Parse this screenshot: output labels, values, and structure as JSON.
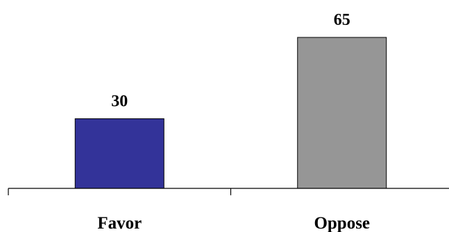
{
  "chart_data": {
    "type": "bar",
    "title": "",
    "xlabel": "",
    "ylabel": "",
    "categories": [
      "Favor",
      "Oppose"
    ],
    "values": [
      30,
      65
    ],
    "data_labels": [
      "30",
      "65"
    ],
    "colors": [
      "#333399",
      "#969696"
    ],
    "ylim": [
      0,
      65
    ],
    "grid": false,
    "legend": "none"
  }
}
